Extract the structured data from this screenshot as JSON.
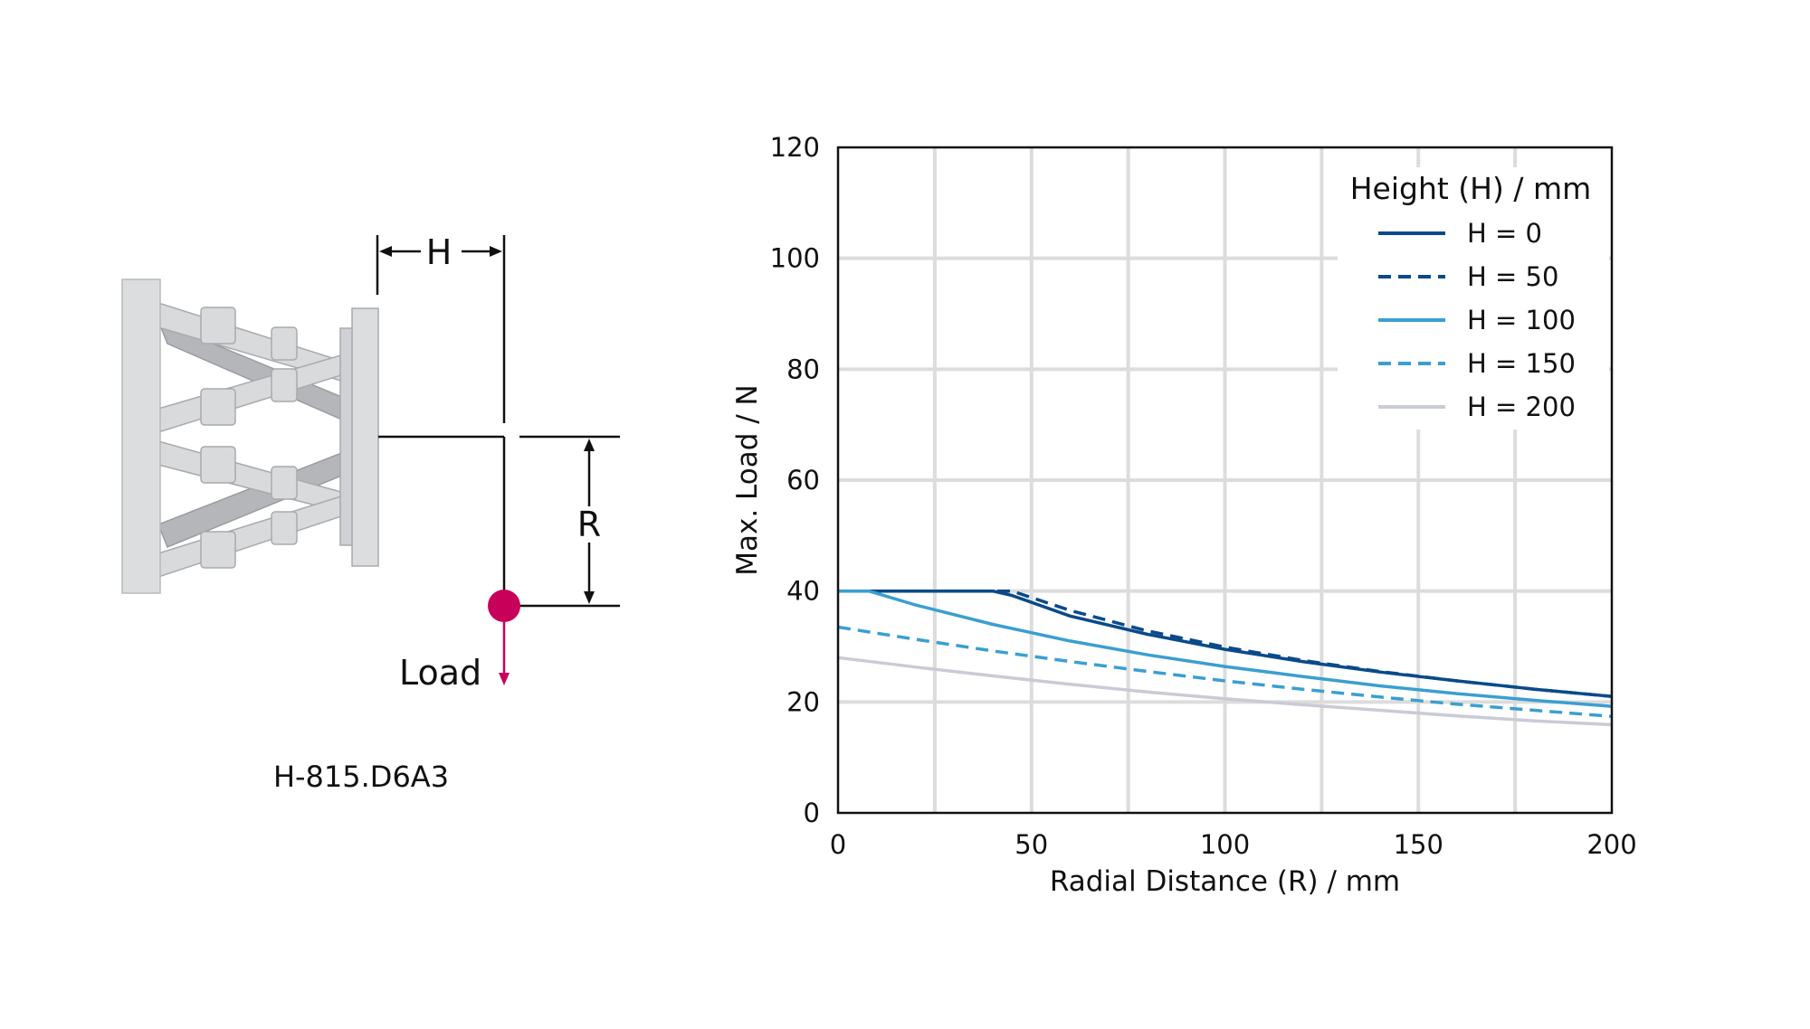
{
  "diagram": {
    "h_label": "H",
    "r_label": "R",
    "load_label": "Load",
    "model_label": "H-815.D6A3",
    "load_color": "#c8005a"
  },
  "chart_data": {
    "type": "line",
    "xlabel": "Radial Distance (R) / mm",
    "ylabel": "Max. Load / N",
    "xlim": [
      0,
      200
    ],
    "ylim": [
      0,
      120
    ],
    "xticks": [
      0,
      50,
      100,
      150,
      200
    ],
    "yticks": [
      0,
      20,
      40,
      60,
      80,
      100,
      120
    ],
    "grid": true,
    "legend_title": "Height (H) / mm",
    "legend_position": "top-right",
    "series": [
      {
        "name": "H = 0",
        "color": "#0a4a8a",
        "dash": "solid",
        "x": [
          0,
          20,
          40,
          45,
          60,
          80,
          100,
          120,
          140,
          160,
          180,
          200
        ],
        "y": [
          40,
          40,
          40,
          39.2,
          35.5,
          32.2,
          29.5,
          27.3,
          25.4,
          23.8,
          22.3,
          21
        ]
      },
      {
        "name": "H = 50",
        "color": "#0a4a8a",
        "dash": "dashed",
        "x": [
          0,
          20,
          40,
          45,
          60,
          80,
          100,
          120,
          140,
          160,
          180,
          200
        ],
        "y": [
          40,
          40,
          40,
          40,
          36.5,
          32.8,
          29.9,
          27.5,
          25.5,
          23.8,
          22.3,
          21
        ]
      },
      {
        "name": "H = 100",
        "color": "#3a9fd0",
        "dash": "solid",
        "x": [
          0,
          8,
          20,
          40,
          60,
          80,
          100,
          120,
          140,
          160,
          180,
          200
        ],
        "y": [
          40,
          40,
          37.5,
          34,
          31,
          28.5,
          26.4,
          24.6,
          22.9,
          21.5,
          20.3,
          19.2
        ]
      },
      {
        "name": "H = 150",
        "color": "#3a9fd0",
        "dash": "dashed",
        "x": [
          0,
          20,
          40,
          60,
          80,
          100,
          120,
          140,
          160,
          180,
          200
        ],
        "y": [
          33.5,
          31.3,
          29.2,
          27.3,
          25.5,
          23.8,
          22.3,
          20.9,
          19.6,
          18.5,
          17.4
        ]
      },
      {
        "name": "H = 200",
        "color": "#c9cbd6",
        "dash": "solid",
        "x": [
          0,
          20,
          40,
          60,
          80,
          100,
          120,
          140,
          160,
          180,
          200
        ],
        "y": [
          28,
          26.3,
          24.7,
          23.2,
          21.8,
          20.6,
          19.5,
          18.5,
          17.5,
          16.6,
          15.9
        ]
      }
    ]
  }
}
